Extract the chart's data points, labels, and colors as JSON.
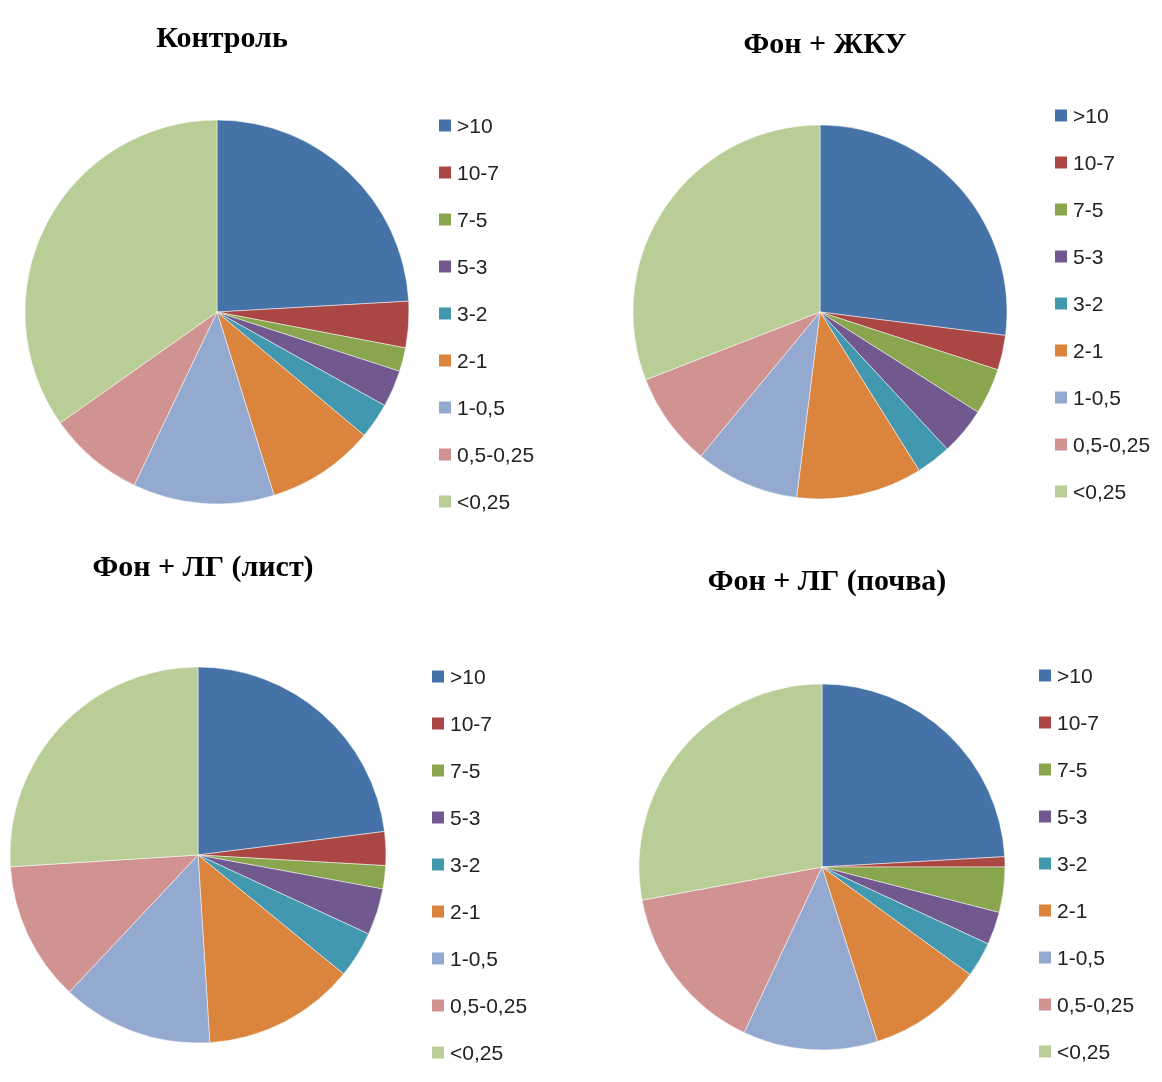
{
  "chart_data": [
    {
      "type": "pie",
      "title": "Контроль",
      "legend": "right",
      "categories": [
        ">10",
        "10-7",
        "7-5",
        "5-3",
        "3-2",
        "2-1",
        "1-0,5",
        "0,5-0,25",
        "<0,25"
      ],
      "values": [
        24.1,
        3.9,
        2.0,
        3.1,
        3.0,
        9.1,
        11.9,
        8.1,
        34.8
      ],
      "colors": [
        "#4572a7",
        "#aa4643",
        "#89a54e",
        "#71588f",
        "#4198af",
        "#db843d",
        "#93a9cf",
        "#d19392",
        "#b9cd96"
      ]
    },
    {
      "type": "pie",
      "title": "Фон + ЖКУ",
      "legend": "right",
      "categories": [
        ">10",
        "10-7",
        "7-5",
        "5-3",
        "3-2",
        "2-1",
        "1-0,5",
        "0,5-0,25",
        "<0,25"
      ],
      "values": [
        27.0,
        3.0,
        4.0,
        4.1,
        3.0,
        10.9,
        9.0,
        8.1,
        30.9
      ],
      "colors": [
        "#4572a7",
        "#aa4643",
        "#89a54e",
        "#71588f",
        "#4198af",
        "#db843d",
        "#93a9cf",
        "#d19392",
        "#b9cd96"
      ]
    },
    {
      "type": "pie",
      "title": "Фон + ЛГ (лист)",
      "legend": "right",
      "categories": [
        ">10",
        "10-7",
        "7-5",
        "5-3",
        "3-2",
        "2-1",
        "1-0,5",
        "0,5-0,25",
        "<0,25"
      ],
      "values": [
        23.0,
        2.9,
        2.0,
        4.0,
        4.0,
        13.1,
        13.0,
        12.0,
        26.0
      ],
      "colors": [
        "#4572a7",
        "#aa4643",
        "#89a54e",
        "#71588f",
        "#4198af",
        "#db843d",
        "#93a9cf",
        "#d19392",
        "#b9cd96"
      ]
    },
    {
      "type": "pie",
      "title": "Фон + ЛГ (почва)",
      "legend": "right",
      "categories": [
        ">10",
        "10-7",
        "7-5",
        "5-3",
        "3-2",
        "2-1",
        "1-0,5",
        "0,5-0,25",
        "<0,25"
      ],
      "values": [
        24.1,
        0.9,
        4.0,
        2.9,
        3.1,
        10.1,
        11.9,
        15.1,
        27.9
      ],
      "colors": [
        "#4572a7",
        "#aa4643",
        "#89a54e",
        "#71588f",
        "#4198af",
        "#db843d",
        "#93a9cf",
        "#d19392",
        "#b9cd96"
      ]
    }
  ]
}
